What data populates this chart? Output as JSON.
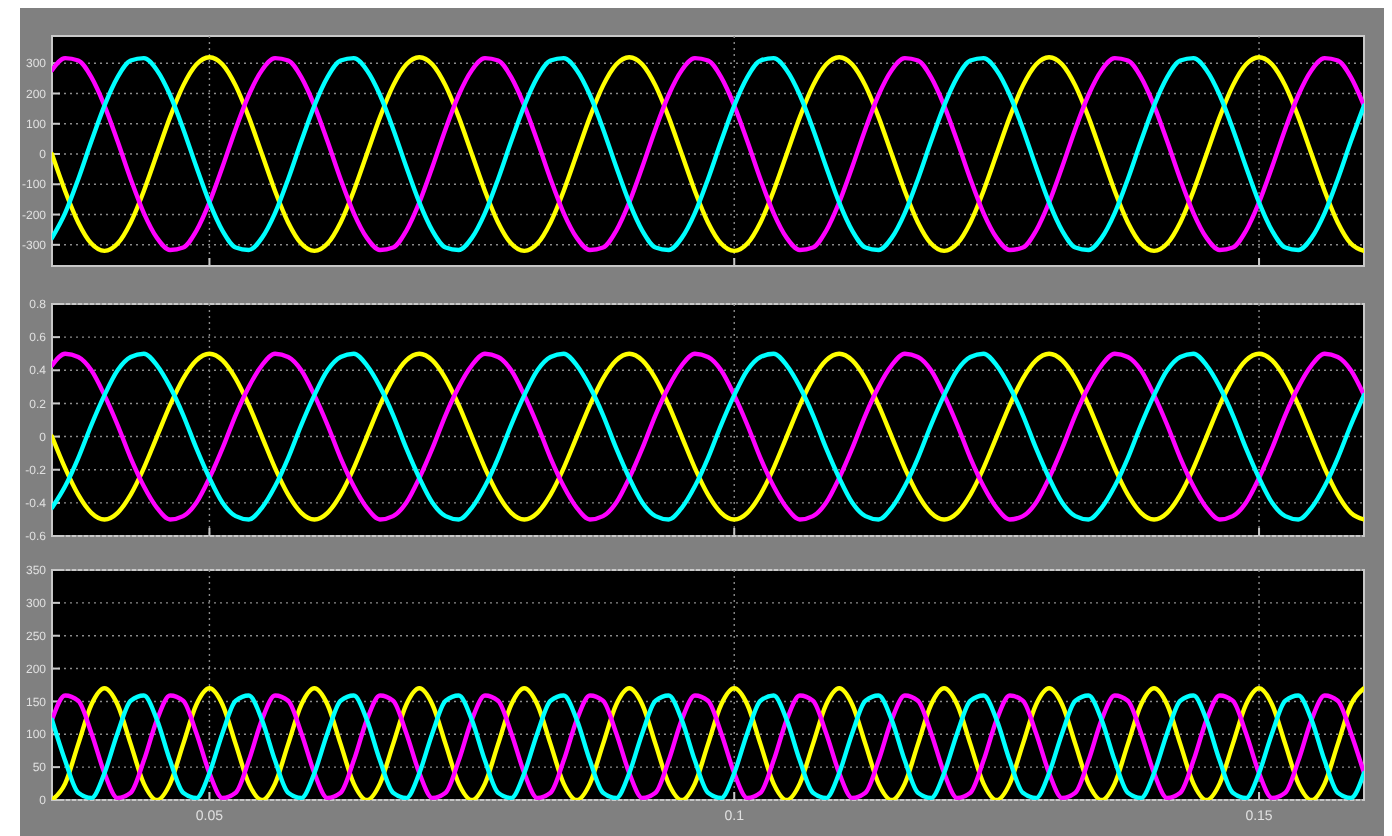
{
  "chart_data": [
    {
      "type": "line",
      "xlim": [
        0.035,
        0.16
      ],
      "xticks": [
        0.05,
        0.1,
        0.15
      ],
      "ylim": [
        -370,
        390
      ],
      "yticks": [
        -300,
        -200,
        -100,
        0,
        100,
        200,
        300
      ],
      "grid": true,
      "tick_labels": "y",
      "x": [
        0.035,
        0.03625,
        0.0375,
        0.03875,
        0.04,
        0.04125,
        0.0425,
        0.04375,
        0.045,
        0.04625,
        0.0475,
        0.04875,
        0.05,
        0.05125,
        0.0525,
        0.05375,
        0.055,
        0.05625,
        0.0575,
        0.05875,
        0.06,
        0.06125,
        0.0625,
        0.06375,
        0.065,
        0.06625,
        0.0675,
        0.06875,
        0.07,
        0.07125,
        0.0725,
        0.07375,
        0.075,
        0.07625,
        0.0775,
        0.07875,
        0.08,
        0.08125,
        0.0825,
        0.08375,
        0.085,
        0.08625,
        0.0875,
        0.08875,
        0.09,
        0.09125,
        0.0925,
        0.09375,
        0.095,
        0.09625,
        0.0975,
        0.09875,
        0.1,
        0.10125,
        0.1025,
        0.10375,
        0.105,
        0.10625,
        0.1075,
        0.10875,
        0.11,
        0.11125,
        0.1125,
        0.11375,
        0.115,
        0.11625,
        0.1175,
        0.11875,
        0.12,
        0.12125,
        0.1225,
        0.12375,
        0.125,
        0.12625,
        0.1275,
        0.12875,
        0.13,
        0.13125,
        0.1325,
        0.13375,
        0.135,
        0.13625,
        0.1375,
        0.13875,
        0.14,
        0.14125,
        0.1425,
        0.14375,
        0.145,
        0.14625,
        0.1475,
        0.14875,
        0.15,
        0.15125,
        0.1525,
        0.15375,
        0.155,
        0.15625,
        0.1575,
        0.15875,
        0.16
      ],
      "series": [
        {
          "color": "#ffff00",
          "values": [
            0,
            -122,
            -226,
            -296,
            -320,
            -296,
            -226,
            -122,
            0,
            122,
            226,
            296,
            320,
            296,
            226,
            122,
            0,
            -122,
            -226,
            -296,
            -320,
            -296,
            -226,
            -122,
            0,
            122,
            226,
            296,
            320,
            296,
            226,
            122,
            0,
            -122,
            -226,
            -296,
            -320,
            -296,
            -226,
            -122,
            0,
            122,
            226,
            296,
            320,
            296,
            226,
            122,
            0,
            -122,
            -226,
            -296,
            -320,
            -296,
            -226,
            -122,
            0,
            122,
            226,
            296,
            320,
            296,
            226,
            122,
            0,
            -122,
            -226,
            -296,
            -320,
            -296,
            -226,
            -122,
            0,
            122,
            226,
            296,
            320,
            296,
            226,
            122,
            0,
            -122,
            -226,
            -296,
            -320,
            -296,
            -226,
            -122,
            0,
            122,
            226,
            296,
            320,
            296,
            226,
            122,
            0,
            -122,
            -226,
            -296,
            -320
          ]
        },
        {
          "color": "#ff00ff",
          "values": [
            277,
            317,
            309,
            254,
            160,
            42,
            -83,
            -195,
            -277,
            -317,
            -309,
            -254,
            -160,
            -42,
            83,
            195,
            277,
            317,
            309,
            254,
            160,
            42,
            -83,
            -195,
            -277,
            -317,
            -309,
            -254,
            -160,
            -42,
            83,
            195,
            277,
            317,
            309,
            254,
            160,
            42,
            -83,
            -195,
            -277,
            -317,
            -309,
            -254,
            -160,
            -42,
            83,
            195,
            277,
            317,
            309,
            254,
            160,
            42,
            -83,
            -195,
            -277,
            -317,
            -309,
            -254,
            -160,
            -42,
            83,
            195,
            277,
            317,
            309,
            254,
            160,
            42,
            -83,
            -195,
            -277,
            -317,
            -309,
            -254,
            -160,
            -42,
            83,
            195,
            277,
            317,
            309,
            254,
            160,
            42,
            -83,
            -195,
            -277,
            -317,
            -309,
            -254,
            -160,
            -42,
            83,
            195,
            277,
            317,
            309,
            254,
            160
          ]
        },
        {
          "color": "#00ffff",
          "values": [
            -277,
            -195,
            -83,
            42,
            160,
            254,
            309,
            317,
            277,
            195,
            83,
            -42,
            -160,
            -254,
            -309,
            -317,
            -277,
            -195,
            -83,
            42,
            160,
            254,
            309,
            317,
            277,
            195,
            83,
            -42,
            -160,
            -254,
            -309,
            -317,
            -277,
            -195,
            -83,
            42,
            160,
            254,
            309,
            317,
            277,
            195,
            83,
            -42,
            -160,
            -254,
            -309,
            -317,
            -277,
            -195,
            -83,
            42,
            160,
            254,
            309,
            317,
            277,
            195,
            83,
            -42,
            -160,
            -254,
            -309,
            -317,
            -277,
            -195,
            -83,
            42,
            160,
            254,
            309,
            317,
            277,
            195,
            83,
            -42,
            -160,
            -254,
            -309,
            -317,
            -277,
            -195,
            -83,
            42,
            160,
            254,
            309,
            317,
            277,
            195,
            83,
            -42,
            -160,
            -254,
            -309,
            -317,
            -277,
            -195,
            -83,
            42,
            160
          ]
        }
      ]
    },
    {
      "type": "line",
      "xlim": [
        0.035,
        0.16
      ],
      "xticks": [
        0.05,
        0.1,
        0.15
      ],
      "ylim": [
        -0.6,
        0.8
      ],
      "yticks": [
        -0.6,
        -0.4,
        -0.2,
        0,
        0.2,
        0.4,
        0.6,
        0.8
      ],
      "grid": true,
      "tick_labels": "y",
      "x": [
        0.035,
        0.03625,
        0.0375,
        0.03875,
        0.04,
        0.04125,
        0.0425,
        0.04375,
        0.045,
        0.04625,
        0.0475,
        0.04875,
        0.05,
        0.05125,
        0.0525,
        0.05375,
        0.055,
        0.05625,
        0.0575,
        0.05875,
        0.06,
        0.06125,
        0.0625,
        0.06375,
        0.065,
        0.06625,
        0.0675,
        0.06875,
        0.07,
        0.07125,
        0.0725,
        0.07375,
        0.075,
        0.07625,
        0.0775,
        0.07875,
        0.08,
        0.08125,
        0.0825,
        0.08375,
        0.085,
        0.08625,
        0.0875,
        0.08875,
        0.09,
        0.09125,
        0.0925,
        0.09375,
        0.095,
        0.09625,
        0.0975,
        0.09875,
        0.1,
        0.10125,
        0.1025,
        0.10375,
        0.105,
        0.10625,
        0.1075,
        0.10875,
        0.11,
        0.11125,
        0.1125,
        0.11375,
        0.115,
        0.11625,
        0.1175,
        0.11875,
        0.12,
        0.12125,
        0.1225,
        0.12375,
        0.125,
        0.12625,
        0.1275,
        0.12875,
        0.13,
        0.13125,
        0.1325,
        0.13375,
        0.135,
        0.13625,
        0.1375,
        0.13875,
        0.14,
        0.14125,
        0.1425,
        0.14375,
        0.145,
        0.14625,
        0.1475,
        0.14875,
        0.15,
        0.15125,
        0.1525,
        0.15375,
        0.155,
        0.15625,
        0.1575,
        0.15875,
        0.16
      ],
      "series": [
        {
          "color": "#ffff00",
          "values": [
            0,
            -0.19,
            -0.35,
            -0.46,
            -0.5,
            -0.46,
            -0.35,
            -0.19,
            0,
            0.19,
            0.35,
            0.46,
            0.5,
            0.46,
            0.35,
            0.19,
            0,
            -0.19,
            -0.35,
            -0.46,
            -0.5,
            -0.46,
            -0.35,
            -0.19,
            0,
            0.19,
            0.35,
            0.46,
            0.5,
            0.46,
            0.35,
            0.19,
            0,
            -0.19,
            -0.35,
            -0.46,
            -0.5,
            -0.46,
            -0.35,
            -0.19,
            0,
            0.19,
            0.35,
            0.46,
            0.5,
            0.46,
            0.35,
            0.19,
            0,
            -0.19,
            -0.35,
            -0.46,
            -0.5,
            -0.46,
            -0.35,
            -0.19,
            0,
            0.19,
            0.35,
            0.46,
            0.5,
            0.46,
            0.35,
            0.19,
            0,
            -0.19,
            -0.35,
            -0.46,
            -0.5,
            -0.46,
            -0.35,
            -0.19,
            0,
            0.19,
            0.35,
            0.46,
            0.5,
            0.46,
            0.35,
            0.19,
            0,
            -0.19,
            -0.35,
            -0.46,
            -0.5,
            -0.46,
            -0.35,
            -0.19,
            0,
            0.19,
            0.35,
            0.46,
            0.5,
            0.46,
            0.35,
            0.19,
            0,
            -0.19,
            -0.35,
            -0.46,
            -0.5
          ]
        },
        {
          "color": "#ff00ff",
          "values": [
            0.43,
            0.5,
            0.48,
            0.4,
            0.25,
            0.07,
            -0.13,
            -0.3,
            -0.43,
            -0.5,
            -0.48,
            -0.4,
            -0.25,
            -0.07,
            0.13,
            0.3,
            0.43,
            0.5,
            0.48,
            0.4,
            0.25,
            0.07,
            -0.13,
            -0.3,
            -0.43,
            -0.5,
            -0.48,
            -0.4,
            -0.25,
            -0.07,
            0.13,
            0.3,
            0.43,
            0.5,
            0.48,
            0.4,
            0.25,
            0.07,
            -0.13,
            -0.3,
            -0.43,
            -0.5,
            -0.48,
            -0.4,
            -0.25,
            -0.07,
            0.13,
            0.3,
            0.43,
            0.5,
            0.48,
            0.4,
            0.25,
            0.07,
            -0.13,
            -0.3,
            -0.43,
            -0.5,
            -0.48,
            -0.4,
            -0.25,
            -0.07,
            0.13,
            0.3,
            0.43,
            0.5,
            0.48,
            0.4,
            0.25,
            0.07,
            -0.13,
            -0.3,
            -0.43,
            -0.5,
            -0.48,
            -0.4,
            -0.25,
            -0.07,
            0.13,
            0.3,
            0.43,
            0.5,
            0.48,
            0.4,
            0.25,
            0.07,
            -0.13,
            -0.3,
            -0.43,
            -0.5,
            -0.48,
            -0.4,
            -0.25,
            -0.07,
            0.13,
            0.3,
            0.43,
            0.5,
            0.48,
            0.4,
            0.25
          ]
        },
        {
          "color": "#00ffff",
          "values": [
            -0.43,
            -0.3,
            -0.13,
            0.07,
            0.25,
            0.4,
            0.48,
            0.5,
            0.43,
            0.3,
            0.13,
            -0.07,
            -0.25,
            -0.4,
            -0.48,
            -0.5,
            -0.43,
            -0.3,
            -0.13,
            0.07,
            0.25,
            0.4,
            0.48,
            0.5,
            0.43,
            0.3,
            0.13,
            -0.07,
            -0.25,
            -0.4,
            -0.48,
            -0.5,
            -0.43,
            -0.3,
            -0.13,
            0.07,
            0.25,
            0.4,
            0.48,
            0.5,
            0.43,
            0.3,
            0.13,
            -0.07,
            -0.25,
            -0.4,
            -0.48,
            -0.5,
            -0.43,
            -0.3,
            -0.13,
            0.07,
            0.25,
            0.4,
            0.48,
            0.5,
            0.43,
            0.3,
            0.13,
            -0.07,
            -0.25,
            -0.4,
            -0.48,
            -0.5,
            -0.43,
            -0.3,
            -0.13,
            0.07,
            0.25,
            0.4,
            0.48,
            0.5,
            0.43,
            0.3,
            0.13,
            -0.07,
            -0.25,
            -0.4,
            -0.48,
            -0.5,
            -0.43,
            -0.3,
            -0.13,
            0.07,
            0.25,
            0.4,
            0.48,
            0.5,
            0.43,
            0.3,
            0.13,
            -0.07,
            -0.25,
            -0.4,
            -0.48,
            -0.5,
            -0.43,
            -0.3,
            -0.13,
            0.07,
            0.25
          ]
        }
      ]
    },
    {
      "type": "line",
      "xlim": [
        0.035,
        0.16
      ],
      "xticks": [
        0.05,
        0.1,
        0.15
      ],
      "ylim": [
        0,
        350
      ],
      "yticks": [
        0,
        50,
        100,
        150,
        200,
        250,
        300,
        350
      ],
      "grid": true,
      "x": [
        0.035,
        0.03625,
        0.0375,
        0.03875,
        0.04,
        0.04125,
        0.0425,
        0.04375,
        0.045,
        0.04625,
        0.0475,
        0.04875,
        0.05,
        0.05125,
        0.0525,
        0.05375,
        0.055,
        0.05625,
        0.0575,
        0.05875,
        0.06,
        0.06125,
        0.0625,
        0.06375,
        0.065,
        0.06625,
        0.0675,
        0.06875,
        0.07,
        0.07125,
        0.0725,
        0.07375,
        0.075,
        0.07625,
        0.0775,
        0.07875,
        0.08,
        0.08125,
        0.0825,
        0.08375,
        0.085,
        0.08625,
        0.0875,
        0.08875,
        0.09,
        0.09125,
        0.0925,
        0.09375,
        0.095,
        0.09625,
        0.0975,
        0.09875,
        0.1,
        0.10125,
        0.1025,
        0.10375,
        0.105,
        0.10625,
        0.1075,
        0.10875,
        0.11,
        0.11125,
        0.1125,
        0.11375,
        0.115,
        0.11625,
        0.1175,
        0.11875,
        0.12,
        0.12125,
        0.1225,
        0.12375,
        0.125,
        0.12625,
        0.1275,
        0.12875,
        0.13,
        0.13125,
        0.1325,
        0.13375,
        0.135,
        0.13625,
        0.1375,
        0.13875,
        0.14,
        0.14125,
        0.1425,
        0.14375,
        0.145,
        0.14625,
        0.1475,
        0.14875,
        0.15,
        0.15125,
        0.1525,
        0.15375,
        0.155,
        0.15625,
        0.1575,
        0.15875,
        0.16
      ],
      "series": [
        {
          "color": "#ffff00",
          "values": [
            0,
            25,
            85,
            145,
            170,
            145,
            85,
            25,
            0,
            25,
            85,
            145,
            170,
            145,
            85,
            25,
            0,
            25,
            85,
            145,
            170,
            145,
            85,
            25,
            0,
            25,
            85,
            145,
            170,
            145,
            85,
            25,
            0,
            25,
            85,
            145,
            170,
            145,
            85,
            25,
            0,
            25,
            85,
            145,
            170,
            145,
            85,
            25,
            0,
            25,
            85,
            145,
            170,
            145,
            85,
            25,
            0,
            25,
            85,
            145,
            170,
            145,
            85,
            25,
            0,
            25,
            85,
            145,
            170,
            145,
            85,
            25,
            0,
            25,
            85,
            145,
            170,
            145,
            85,
            25,
            0,
            25,
            85,
            145,
            170,
            145,
            85,
            25,
            0,
            25,
            85,
            145,
            170,
            145,
            85,
            25,
            0,
            25,
            85,
            145,
            170
          ]
        },
        {
          "color": "#ff00ff",
          "values": [
            122,
            159,
            151,
            102,
            41,
            3,
            11,
            60,
            122,
            159,
            151,
            102,
            41,
            3,
            11,
            60,
            122,
            159,
            151,
            102,
            41,
            3,
            11,
            60,
            122,
            159,
            151,
            102,
            41,
            3,
            11,
            60,
            122,
            159,
            151,
            102,
            41,
            3,
            11,
            60,
            122,
            159,
            151,
            102,
            41,
            3,
            11,
            60,
            122,
            159,
            151,
            102,
            41,
            3,
            11,
            60,
            122,
            159,
            151,
            102,
            41,
            3,
            11,
            60,
            122,
            159,
            151,
            102,
            41,
            3,
            11,
            60,
            122,
            159,
            151,
            102,
            41,
            3,
            11,
            60,
            122,
            159,
            151,
            102,
            41,
            3,
            11,
            60,
            122,
            159,
            151,
            102,
            41,
            3,
            11,
            60,
            122,
            159,
            151,
            102,
            41
          ]
        },
        {
          "color": "#00ffff",
          "values": [
            122,
            60,
            11,
            3,
            41,
            102,
            151,
            159,
            122,
            60,
            11,
            3,
            41,
            102,
            151,
            159,
            122,
            60,
            11,
            3,
            41,
            102,
            151,
            159,
            122,
            60,
            11,
            3,
            41,
            102,
            151,
            159,
            122,
            60,
            11,
            3,
            41,
            102,
            151,
            159,
            122,
            60,
            11,
            3,
            41,
            102,
            151,
            159,
            122,
            60,
            11,
            3,
            41,
            102,
            151,
            159,
            122,
            60,
            11,
            3,
            41,
            102,
            151,
            159,
            122,
            60,
            11,
            3,
            41,
            102,
            151,
            159,
            122,
            60,
            11,
            3,
            41,
            102,
            151,
            159,
            122,
            60,
            11,
            3,
            41,
            102,
            151,
            159,
            122,
            60,
            11,
            3,
            41,
            102,
            151,
            159,
            122,
            60,
            11,
            3,
            41
          ]
        }
      ]
    }
  ]
}
